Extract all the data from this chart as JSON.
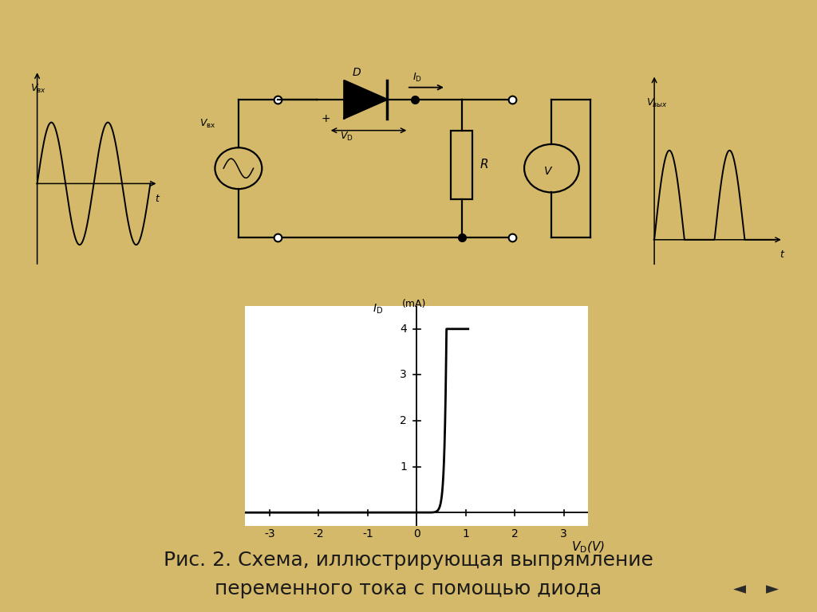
{
  "bg_color": "#d4b96a",
  "panel_color": "#ffffff",
  "caption_line1": "Рис. 2. Схема, иллюстрирующая выпрямление",
  "caption_line2": "переменного тока с помощью диода",
  "caption_fontsize": 18,
  "caption_color": "#1a1a1a",
  "diode_curve": {
    "I0_mA": 1e-09,
    "Vt": 0.04,
    "clip_max": 4.0,
    "xlim": [
      -3.5,
      3.5
    ],
    "ylim": [
      -0.3,
      4.5
    ],
    "xticks": [
      -3,
      -2,
      -1,
      0,
      1,
      2,
      3
    ],
    "yticks": [
      1,
      2,
      3,
      4
    ]
  }
}
